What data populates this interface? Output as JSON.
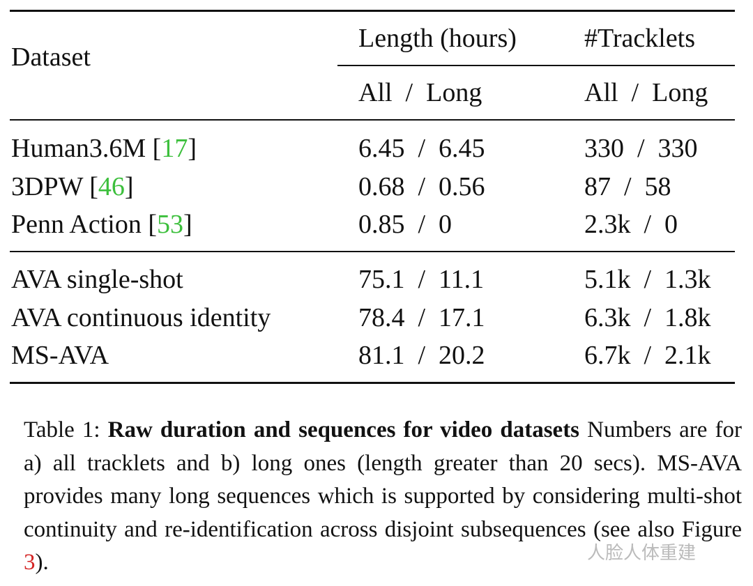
{
  "table": {
    "header": {
      "dataset": "Dataset",
      "length": "Length (hours)",
      "tracklets": "#Tracklets"
    },
    "subheader": {
      "length": "All  /  Long",
      "tracklets": "All  /  Long"
    },
    "groups": [
      [
        {
          "name": "Human3.6M [",
          "cite": "17",
          "name_end": "]",
          "length": "6.45  /  6.45",
          "tracklets": "330  /  330"
        },
        {
          "name": "3DPW [",
          "cite": "46",
          "name_end": "]",
          "length": "0.68  /  0.56",
          "tracklets": "87  /  58"
        },
        {
          "name": "Penn Action [",
          "cite": "53",
          "name_end": "]",
          "length": "0.85  /  0",
          "tracklets": "2.3k  /  0"
        }
      ],
      [
        {
          "name": "AVA single-shot",
          "length": "75.1  /  11.1",
          "tracklets": "5.1k  /  1.3k"
        },
        {
          "name": "AVA continuous identity",
          "length": "78.4  /  17.1",
          "tracklets": "6.3k  /  1.8k"
        },
        {
          "name": "MS-AVA",
          "length": "81.1  /  20.2",
          "tracklets": "6.7k  /  2.1k"
        }
      ]
    ]
  },
  "caption": {
    "label": "Table 1:",
    "title": "Raw duration and sequences for video datasets",
    "body": "Numbers are for a) all tracklets and b) long ones (length greater than 20 secs). MS-AVA provides many long sequences which is supported by considering multi-shot continuity and re-identification across disjoint subsequences (see also Figure",
    "ref": "3",
    "end": ")."
  },
  "watermark": "人脸人体重建"
}
